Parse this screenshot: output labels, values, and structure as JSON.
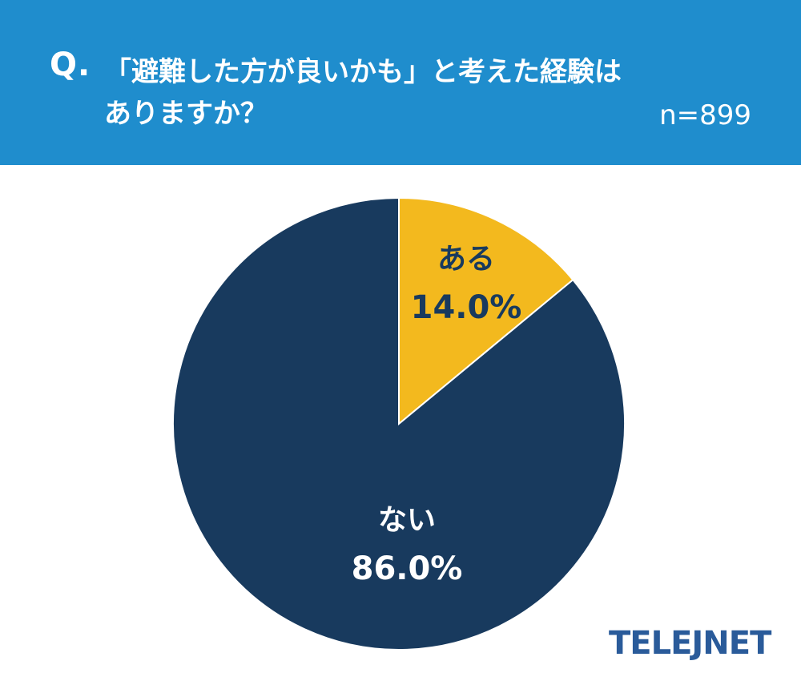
{
  "header": {
    "question_prefix": "Q.",
    "question_line1": "「避難した方が良いかも」と考えた経験は",
    "question_line2": "ありますか？",
    "sample_size": "n=899"
  },
  "logo": {
    "text": "TELEJNET"
  },
  "colors": {
    "header_bg": "#1f8dcd",
    "slice_yes": "#f3b91e",
    "slice_no": "#183a5e",
    "label_dark": "#183a5e",
    "label_light": "#ffffff",
    "logo": "#2a5b9a"
  },
  "chart_data": {
    "type": "pie",
    "start_angle": "12 o'clock",
    "direction": "clockwise",
    "slices": [
      {
        "label": "ある",
        "value": 14.0,
        "value_label": "14.0%",
        "color": "#f3b91e"
      },
      {
        "label": "ない",
        "value": 86.0,
        "value_label": "86.0%",
        "color": "#183a5e"
      }
    ]
  }
}
